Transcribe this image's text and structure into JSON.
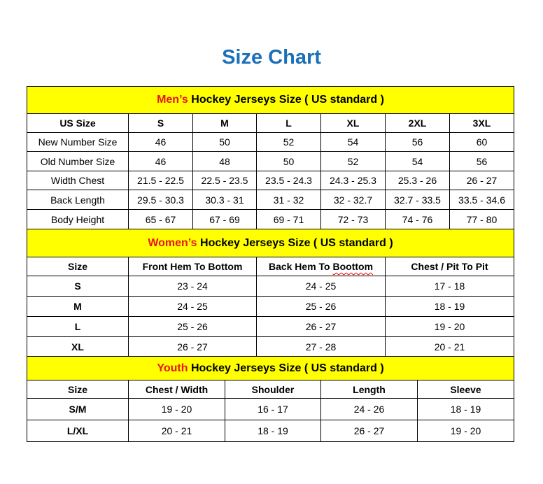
{
  "title": "Size Chart",
  "colors": {
    "title": "#1b70b8",
    "section_bg": "#ffff00",
    "accent_red": "#e8161b"
  },
  "men": {
    "heading_accent": "Men’s",
    "heading_rest": " Hockey Jerseys Size ( US standard )",
    "columns": [
      "US Size",
      "S",
      "M",
      "L",
      "XL",
      "2XL",
      "3XL"
    ],
    "rows": [
      [
        "New Number Size",
        "46",
        "50",
        "52",
        "54",
        "56",
        "60"
      ],
      [
        "Old Number Size",
        "46",
        "48",
        "50",
        "52",
        "54",
        "56"
      ],
      [
        "Width Chest",
        "21.5 - 22.5",
        "22.5 - 23.5",
        "23.5 - 24.3",
        "24.3 - 25.3",
        "25.3 - 26",
        "26 - 27"
      ],
      [
        "Back Length",
        "29.5 - 30.3",
        "30.3 - 31",
        "31 - 32",
        "32 - 32.7",
        "32.7 - 33.5",
        "33.5 - 34.6"
      ],
      [
        "Body Height",
        "65 - 67",
        "67 - 69",
        "69 - 71",
        "72 - 73",
        "74 - 76",
        "77 - 80"
      ]
    ]
  },
  "women": {
    "heading_accent": "Women’s",
    "heading_rest": " Hockey Jerseys Size ( US standard )",
    "columns": [
      "Size",
      "Front Hem To Bottom",
      "Back Hem To Boottom",
      "Chest / Pit To Pit"
    ],
    "rows": [
      [
        "S",
        "23 - 24",
        "24 - 25",
        "17 - 18"
      ],
      [
        "M",
        "24 - 25",
        "25 - 26",
        "18 - 19"
      ],
      [
        "L",
        "25 - 26",
        "26 - 27",
        "19 - 20"
      ],
      [
        "XL",
        "26 - 27",
        "27 - 28",
        "20 - 21"
      ]
    ]
  },
  "youth": {
    "heading_accent": "Youth",
    "heading_rest": " Hockey Jerseys Size ( US standard )",
    "columns": [
      "Size",
      "Chest / Width",
      "Shoulder",
      "Length",
      "Sleeve"
    ],
    "rows": [
      [
        "S/M",
        "19 - 20",
        "16 - 17",
        "24 - 26",
        "18 - 19"
      ],
      [
        "L/XL",
        "20 - 21",
        "18 - 19",
        "26 - 27",
        "19 - 20"
      ]
    ]
  }
}
